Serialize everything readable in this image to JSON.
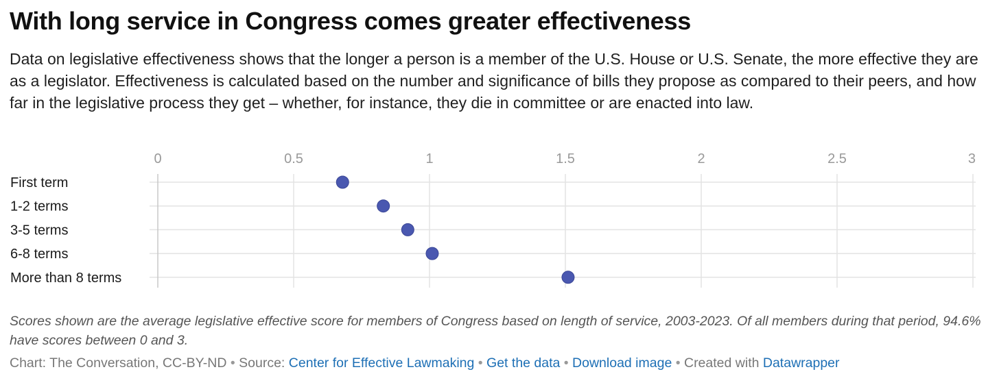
{
  "header": {
    "title": "With long service in Congress comes greater effectiveness",
    "subtitle": "Data on legislative effectiveness shows that the longer a person is a member of the U.S. House or U.S. Senate, the more effective they are as a legislator. Effectiveness is calculated based on the number and significance of bills they propose as compared to their peers, and how far in the legislative process they get – whether, for instance, they die in committee or are enacted into law."
  },
  "chart_data": {
    "type": "scatter",
    "categories": [
      "First term",
      "1-2 terms",
      "3-5 terms",
      "6-8 terms",
      "More than 8 terms"
    ],
    "values": [
      0.68,
      0.83,
      0.92,
      1.01,
      1.51
    ],
    "xlim": [
      0,
      3
    ],
    "xticks": [
      0,
      0.5,
      1,
      1.5,
      2,
      2.5,
      3
    ],
    "xtick_labels": [
      "0",
      "0.5",
      "1",
      "1.5",
      "2",
      "2.5",
      "3"
    ],
    "grid": true,
    "dot_color": "#4a58b0"
  },
  "notes": "Scores shown are the average legislative effective score for members of Congress based on length of service, 2003-2023. Of all members during that period, 94.6% have scores between 0 and 3.",
  "footer": {
    "chart_prefix": "Chart: The Conversation, CC-BY-ND",
    "source_prefix": "Source:",
    "source_link": "Center for Effective Lawmaking",
    "get_data_link": "Get the data",
    "download_link": "Download image",
    "created_prefix": "Created with",
    "datawrapper_link": "Datawrapper",
    "separator": "•"
  }
}
